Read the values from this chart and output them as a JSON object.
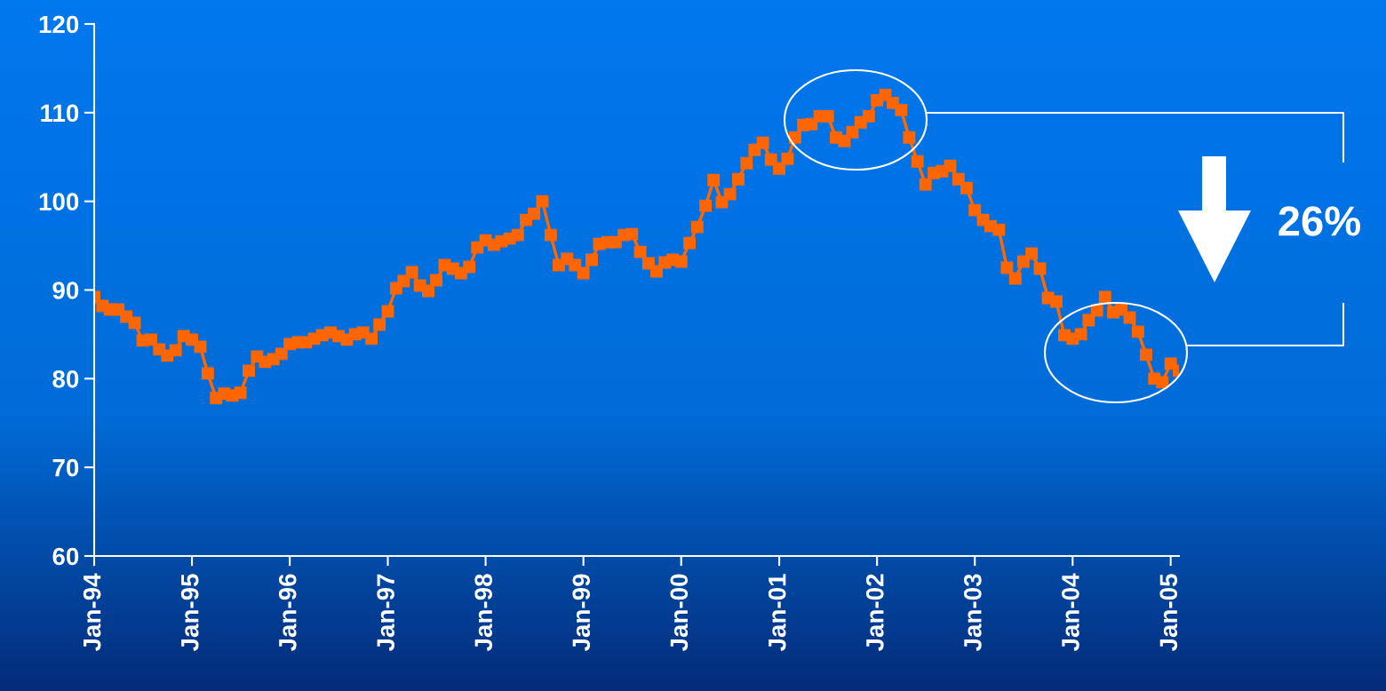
{
  "chart_data": {
    "type": "line",
    "x": [
      "1994-01",
      "1994-02",
      "1994-03",
      "1994-04",
      "1994-05",
      "1994-06",
      "1994-07",
      "1994-08",
      "1994-09",
      "1994-10",
      "1994-11",
      "1994-12",
      "1995-01",
      "1995-02",
      "1995-03",
      "1995-04",
      "1995-05",
      "1995-06",
      "1995-07",
      "1995-08",
      "1995-09",
      "1995-10",
      "1995-11",
      "1995-12",
      "1996-01",
      "1996-02",
      "1996-03",
      "1996-04",
      "1996-05",
      "1996-06",
      "1996-07",
      "1996-08",
      "1996-09",
      "1996-10",
      "1996-11",
      "1996-12",
      "1997-01",
      "1997-02",
      "1997-03",
      "1997-04",
      "1997-05",
      "1997-06",
      "1997-07",
      "1997-08",
      "1997-09",
      "1997-10",
      "1997-11",
      "1997-12",
      "1998-01",
      "1998-02",
      "1998-03",
      "1998-04",
      "1998-05",
      "1998-06",
      "1998-07",
      "1998-08",
      "1998-09",
      "1998-10",
      "1998-11",
      "1998-12",
      "1999-01",
      "1999-02",
      "1999-03",
      "1999-04",
      "1999-05",
      "1999-06",
      "1999-07",
      "1999-08",
      "1999-09",
      "1999-10",
      "1999-11",
      "1999-12",
      "2000-01",
      "2000-02",
      "2000-03",
      "2000-04",
      "2000-05",
      "2000-06",
      "2000-07",
      "2000-08",
      "2000-09",
      "2000-10",
      "2000-11",
      "2000-12",
      "2001-01",
      "2001-02",
      "2001-03",
      "2001-04",
      "2001-05",
      "2001-06",
      "2001-07",
      "2001-08",
      "2001-09",
      "2001-10",
      "2001-11",
      "2001-12",
      "2002-01",
      "2002-02",
      "2002-03",
      "2002-04",
      "2002-05",
      "2002-06",
      "2002-07",
      "2002-08",
      "2002-09",
      "2002-10",
      "2002-11",
      "2002-12",
      "2003-01",
      "2003-02",
      "2003-03",
      "2003-04",
      "2003-05",
      "2003-06",
      "2003-07",
      "2003-08",
      "2003-09",
      "2003-10",
      "2003-11",
      "2003-12",
      "2004-01",
      "2004-02",
      "2004-03",
      "2004-04",
      "2004-05",
      "2004-06",
      "2004-07",
      "2004-08",
      "2004-09",
      "2004-10",
      "2004-11",
      "2004-12",
      "2005-01",
      "2005-02"
    ],
    "series": [
      {
        "color": "#ff6600",
        "values": [
          89.2,
          88.2,
          87.8,
          87.8,
          87.0,
          86.3,
          84.3,
          84.4,
          83.3,
          82.6,
          83.2,
          84.8,
          84.4,
          83.6,
          80.6,
          77.8,
          78.3,
          78.1,
          78.4,
          80.9,
          82.5,
          81.9,
          82.2,
          82.8,
          83.9,
          84.1,
          84.1,
          84.5,
          84.9,
          85.2,
          84.8,
          84.4,
          85.0,
          85.2,
          84.5,
          86.1,
          87.6,
          90.2,
          91.0,
          92.0,
          90.5,
          89.9,
          91.1,
          92.8,
          92.4,
          91.9,
          92.6,
          94.8,
          95.6,
          95.1,
          95.5,
          95.8,
          96.2,
          97.9,
          98.6,
          100.0,
          96.2,
          92.8,
          93.5,
          92.8,
          91.9,
          93.4,
          95.2,
          95.4,
          95.4,
          96.2,
          96.3,
          94.3,
          93.0,
          92.1,
          93.1,
          93.4,
          93.2,
          95.3,
          97.1,
          99.5,
          102.4,
          99.9,
          100.8,
          102.5,
          104.3,
          105.8,
          106.6,
          104.7,
          103.7,
          104.8,
          107.2,
          108.6,
          108.7,
          109.6,
          109.6,
          107.2,
          106.8,
          107.8,
          108.9,
          109.6,
          111.4,
          112.0,
          111.1,
          110.3,
          107.2,
          104.5,
          101.9,
          103.2,
          103.4,
          104.0,
          102.5,
          101.5,
          99.0,
          97.9,
          97.2,
          96.8,
          92.5,
          91.3,
          93.2,
          94.1,
          92.4,
          89.1,
          88.7,
          84.9,
          84.5,
          85.0,
          86.6,
          87.7,
          89.2,
          87.5,
          87.8,
          86.9,
          85.3,
          82.7,
          80.0,
          79.6,
          81.7,
          80.9
        ]
      }
    ],
    "marker": "square",
    "line_style": "solid",
    "xlim": [
      "1994-01",
      "2005-02"
    ],
    "xticks": [
      {
        "value": "1994-01",
        "label": "Jan-94"
      },
      {
        "value": "1995-01",
        "label": "Jan-95"
      },
      {
        "value": "1996-01",
        "label": "Jan-96"
      },
      {
        "value": "1997-01",
        "label": "Jan-97"
      },
      {
        "value": "1998-01",
        "label": "Jan-98"
      },
      {
        "value": "1999-01",
        "label": "Jan-99"
      },
      {
        "value": "2000-01",
        "label": "Jan-00"
      },
      {
        "value": "2001-01",
        "label": "Jan-01"
      },
      {
        "value": "2002-01",
        "label": "Jan-02"
      },
      {
        "value": "2003-01",
        "label": "Jan-03"
      },
      {
        "value": "2004-01",
        "label": "Jan-04"
      },
      {
        "value": "2005-01",
        "label": "Jan-05"
      }
    ],
    "ylim": [
      60,
      120
    ],
    "yticks": [
      60,
      70,
      80,
      90,
      100,
      110,
      120
    ],
    "grid": false,
    "annotations": [
      "26%"
    ]
  }
}
